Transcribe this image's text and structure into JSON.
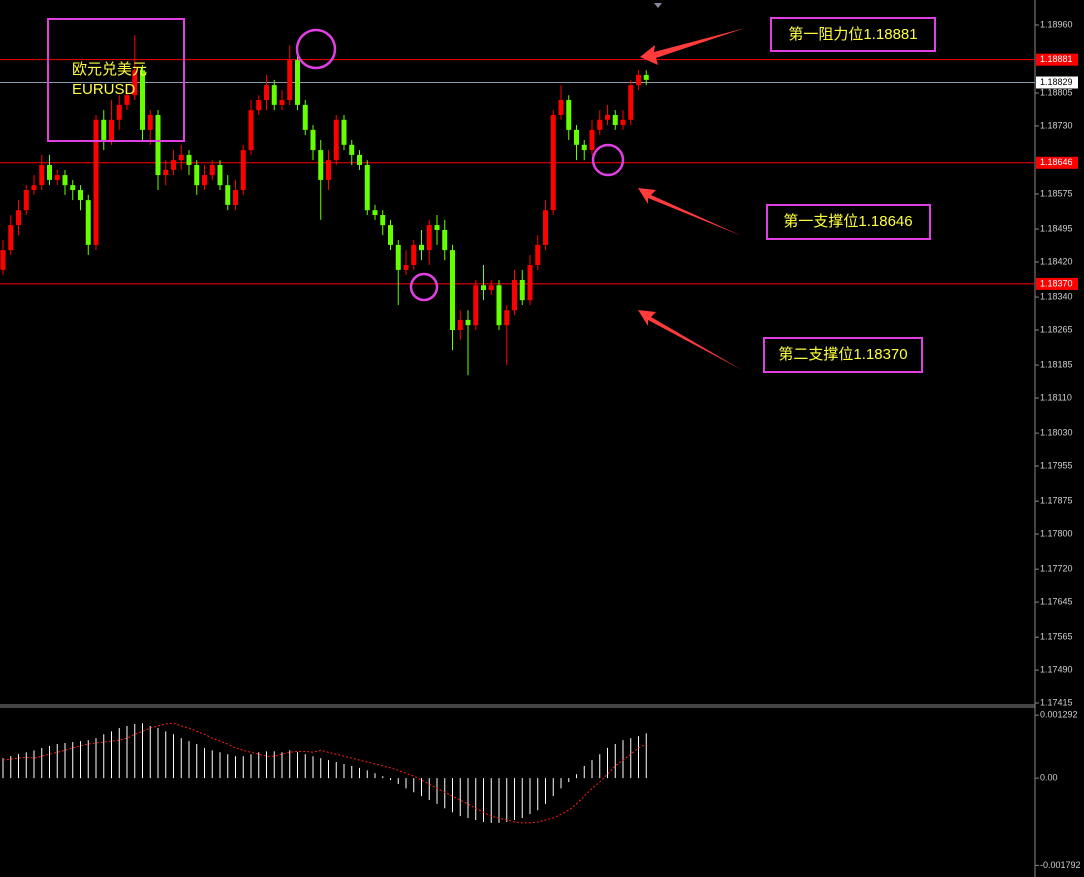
{
  "chart_data": [
    {
      "type": "candlestick",
      "title": "欧元兑美元",
      "subtitle": "EURUSD",
      "up_color": "#ff0000",
      "down_color": "#66ff00",
      "open": [
        1.18402,
        1.18447,
        1.18504,
        1.18538,
        1.18584,
        1.18595,
        1.18641,
        1.18607,
        1.18618,
        1.18595,
        1.18584,
        1.18561,
        1.18459,
        1.18744,
        1.18698,
        1.18744,
        1.18778,
        1.188,
        1.18857,
        1.18721,
        1.18755,
        1.18618,
        1.1863,
        1.18652,
        1.18664,
        1.18641,
        1.18595,
        1.18618,
        1.18641,
        1.18595,
        1.1855,
        1.18584,
        1.18675,
        1.18766,
        1.18789,
        1.18823,
        1.18778,
        1.18789,
        1.1888,
        1.18778,
        1.18721,
        1.18675,
        1.18607,
        1.18652,
        1.18744,
        1.18687,
        1.18664,
        1.18641,
        1.18538,
        1.18527,
        1.18504,
        1.18459,
        1.18402,
        1.18413,
        1.18459,
        1.18447,
        1.18504,
        1.18493,
        1.18447,
        1.18265,
        1.18288,
        1.18276,
        1.18367,
        1.18356,
        1.18367,
        1.18276,
        1.1831,
        1.18379,
        1.18333,
        1.18413,
        1.18459,
        1.18538,
        1.18755,
        1.18789,
        1.18721,
        1.18687,
        1.18675,
        1.18721,
        1.18744,
        1.18755,
        1.18732,
        1.18744,
        1.18823,
        1.18846
      ],
      "high": [
        1.1847,
        1.18527,
        1.18561,
        1.18595,
        1.18618,
        1.18664,
        1.18664,
        1.1863,
        1.1863,
        1.18607,
        1.18595,
        1.18573,
        1.18755,
        1.18766,
        1.18789,
        1.188,
        1.18823,
        1.18937,
        1.18869,
        1.18766,
        1.18766,
        1.18652,
        1.18675,
        1.18687,
        1.18675,
        1.18652,
        1.18641,
        1.18652,
        1.18652,
        1.18618,
        1.18607,
        1.18687,
        1.18789,
        1.188,
        1.18846,
        1.18835,
        1.18812,
        1.18914,
        1.18892,
        1.18789,
        1.18732,
        1.18698,
        1.18675,
        1.18755,
        1.18755,
        1.18698,
        1.18675,
        1.18652,
        1.1855,
        1.18538,
        1.18516,
        1.1847,
        1.18447,
        1.1847,
        1.18493,
        1.18516,
        1.18527,
        1.18516,
        1.18459,
        1.1831,
        1.1831,
        1.18379,
        1.18413,
        1.18379,
        1.18379,
        1.18322,
        1.18402,
        1.18402,
        1.18436,
        1.18481,
        1.18561,
        1.18766,
        1.18823,
        1.188,
        1.18732,
        1.18698,
        1.18744,
        1.18766,
        1.18778,
        1.18766,
        1.18766,
        1.18835,
        1.18857,
        1.18857
      ],
      "low": [
        1.1839,
        1.18436,
        1.18481,
        1.18527,
        1.18573,
        1.18584,
        1.18595,
        1.18595,
        1.18573,
        1.18561,
        1.18538,
        1.18436,
        1.18447,
        1.18675,
        1.18687,
        1.18721,
        1.18766,
        1.18789,
        1.18698,
        1.18687,
        1.18584,
        1.18595,
        1.18618,
        1.1863,
        1.18618,
        1.18573,
        1.18584,
        1.18607,
        1.18584,
        1.18538,
        1.18538,
        1.18573,
        1.18664,
        1.18755,
        1.18766,
        1.18766,
        1.18766,
        1.18778,
        1.18766,
        1.18709,
        1.18652,
        1.18516,
        1.18584,
        1.18641,
        1.18675,
        1.18641,
        1.1863,
        1.18527,
        1.18516,
        1.18481,
        1.18447,
        1.18322,
        1.1839,
        1.18402,
        1.18424,
        1.18413,
        1.18459,
        1.18424,
        1.18219,
        1.18242,
        1.18162,
        1.18265,
        1.18333,
        1.18345,
        1.18265,
        1.18185,
        1.18299,
        1.18322,
        1.18322,
        1.18402,
        1.18447,
        1.18527,
        1.18744,
        1.18698,
        1.18652,
        1.18652,
        1.18664,
        1.18709,
        1.18732,
        1.18721,
        1.18721,
        1.18732,
        1.18812,
        1.18823
      ],
      "close": [
        1.18447,
        1.18504,
        1.18538,
        1.18584,
        1.18595,
        1.18641,
        1.18607,
        1.18618,
        1.18595,
        1.18584,
        1.18561,
        1.18459,
        1.18744,
        1.18698,
        1.18744,
        1.18778,
        1.188,
        1.18857,
        1.18721,
        1.18755,
        1.18618,
        1.1863,
        1.18652,
        1.18664,
        1.18641,
        1.18595,
        1.18618,
        1.18641,
        1.18595,
        1.1855,
        1.18584,
        1.18675,
        1.18766,
        1.18789,
        1.18823,
        1.18778,
        1.18789,
        1.1888,
        1.18778,
        1.18721,
        1.18675,
        1.18607,
        1.18652,
        1.18744,
        1.18687,
        1.18664,
        1.18641,
        1.18538,
        1.18527,
        1.18504,
        1.18459,
        1.18402,
        1.18413,
        1.18459,
        1.18447,
        1.18504,
        1.18493,
        1.18447,
        1.18265,
        1.18288,
        1.18276,
        1.18367,
        1.18356,
        1.18367,
        1.18276,
        1.1831,
        1.18379,
        1.18333,
        1.18413,
        1.18459,
        1.18538,
        1.18755,
        1.18789,
        1.18721,
        1.18687,
        1.18675,
        1.18721,
        1.18744,
        1.18755,
        1.18732,
        1.18744,
        1.18823,
        1.18846,
        1.18835
      ],
      "ylim": [
        1.17415,
        1.19017
      ],
      "yticks": [
        {
          "value": 1.1896,
          "label": "1.18960"
        },
        1.18805,
        {
          "value": 1.1873,
          "label": "1.18730"
        },
        1.18575,
        1.18495,
        {
          "value": 1.1842,
          "label": "1.18420"
        },
        {
          "value": 1.1834,
          "label": "1.18340"
        },
        1.18265,
        1.18185,
        {
          "value": 1.1811,
          "label": "1.18110"
        },
        {
          "value": 1.1803,
          "label": "1.18030"
        },
        1.17955,
        1.17875,
        {
          "value": 1.178,
          "label": "1.17800"
        },
        {
          "value": 1.1772,
          "label": "1.17720"
        },
        1.17645,
        1.17565,
        {
          "value": 1.1749,
          "label": "1.17490"
        },
        1.17415
      ],
      "levels": [
        {
          "value": 1.18881,
          "color": "#ff0000"
        },
        {
          "value": 1.18829,
          "color": "#ffffff"
        },
        {
          "value": 1.18646,
          "color": "#ff0000"
        },
        {
          "value": 1.1837,
          "label": "1.18370",
          "color": "#ff0000"
        }
      ],
      "annotations": [
        "第一阻力位1.18881",
        "第一支撑位1.18646",
        "第二支撑位1.18370"
      ]
    },
    {
      "type": "macd",
      "values": [
        0.00041,
        0.00045,
        0.00049,
        0.00053,
        0.00057,
        0.00062,
        0.00066,
        0.0007,
        0.00072,
        0.00074,
        0.00076,
        0.00078,
        0.00082,
        0.0009,
        0.00096,
        0.00103,
        0.00107,
        0.00111,
        0.00113,
        0.00107,
        0.00103,
        0.00096,
        0.0009,
        0.00082,
        0.00076,
        0.0007,
        0.00062,
        0.00057,
        0.00053,
        0.00049,
        0.00045,
        0.00045,
        0.00049,
        0.00053,
        0.00055,
        0.00055,
        0.00053,
        0.00057,
        0.00053,
        0.00049,
        0.00045,
        0.00041,
        0.00037,
        0.00033,
        0.00029,
        0.00025,
        0.00021,
        0.00016,
        0.0001,
        4e-05,
        -4e-05,
        -0.00012,
        -0.00021,
        -0.00029,
        -0.00037,
        -0.00045,
        -0.00053,
        -0.00062,
        -0.0007,
        -0.00078,
        -0.00082,
        -0.00086,
        -0.0009,
        -0.00092,
        -0.00092,
        -0.0009,
        -0.00086,
        -0.00082,
        -0.00074,
        -0.00066,
        -0.00053,
        -0.00037,
        -0.00021,
        -8e-05,
        8e-05,
        0.00025,
        0.00037,
        0.00049,
        0.00062,
        0.0007,
        0.00078,
        0.00082,
        0.00086,
        0.00092
      ],
      "signal": [
        0.00037,
        0.00039,
        0.00041,
        0.00043,
        0.00041,
        0.00045,
        0.00049,
        0.00053,
        0.00057,
        0.00062,
        0.00066,
        0.0007,
        0.00072,
        0.00074,
        0.00076,
        0.00078,
        0.00082,
        0.0009,
        0.00096,
        0.00103,
        0.00107,
        0.00111,
        0.00113,
        0.00107,
        0.00103,
        0.00096,
        0.0009,
        0.00082,
        0.00076,
        0.0007,
        0.00062,
        0.00057,
        0.00053,
        0.00049,
        0.00045,
        0.00045,
        0.00049,
        0.00053,
        0.00055,
        0.00055,
        0.00053,
        0.00057,
        0.00053,
        0.00049,
        0.00045,
        0.00041,
        0.00037,
        0.00033,
        0.00029,
        0.00025,
        0.00021,
        0.00016,
        0.0001,
        4e-05,
        -4e-05,
        -0.00012,
        -0.00021,
        -0.00029,
        -0.00037,
        -0.00045,
        -0.00053,
        -0.00062,
        -0.0007,
        -0.00078,
        -0.00082,
        -0.00086,
        -0.0009,
        -0.00092,
        -0.00092,
        -0.0009,
        -0.00086,
        -0.00082,
        -0.00074,
        -0.00066,
        -0.00053,
        -0.00037,
        -0.00021,
        -8e-05,
        8e-05,
        0.00025,
        0.00037,
        0.00049,
        0.00062,
        0.0007
      ],
      "color": "#ffffff",
      "signal_color": "#ff2020",
      "ylim": [
        -0.00203,
        0.00146
      ],
      "yticks": [
        0.001292,
        {
          "value": 0,
          "label": "0.00"
        },
        -0.001792
      ]
    }
  ]
}
